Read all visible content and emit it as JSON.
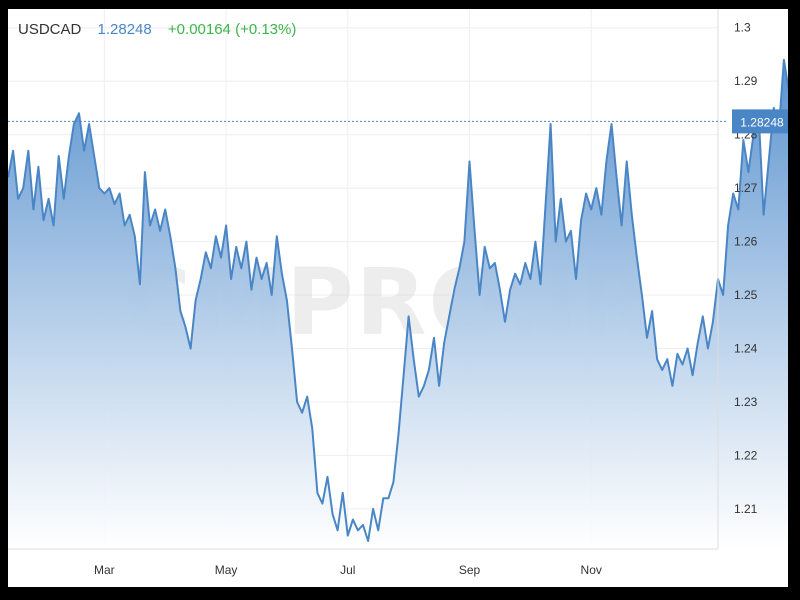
{
  "watermark": "CMPRO.IR",
  "colors": {
    "line": "#4a86c5",
    "fill_top": "#5b93cf",
    "fill_bottom": "#ffffff",
    "grid": "#eeeeee",
    "badge": "#4a86c5",
    "change_positive": "#3bb54a"
  },
  "chart_data": {
    "type": "area",
    "symbol": "USDCAD",
    "last_price": "1.28248",
    "change": "+0.00164",
    "change_pct": "(+0.13%)",
    "last_value": 1.28248,
    "ylim": [
      1.2025,
      1.3035
    ],
    "y_ticks": [
      1.21,
      1.22,
      1.23,
      1.24,
      1.25,
      1.26,
      1.27,
      1.28,
      1.29,
      1.3
    ],
    "y_tick_labels": [
      "1.21",
      "1.22",
      "1.23",
      "1.24",
      "1.25",
      "1.26",
      "1.27",
      "1.28",
      "1.29",
      "1.3"
    ],
    "x_tick_labels": [
      "Mar",
      "May",
      "Jul",
      "Sep",
      "Nov"
    ],
    "x_tick_positions": [
      19,
      43,
      67,
      91,
      115
    ],
    "x_range": [
      0,
      140
    ],
    "grid": true,
    "series": [
      {
        "values": [
          1.272,
          1.277,
          1.268,
          1.27,
          1.277,
          1.266,
          1.274,
          1.264,
          1.268,
          1.263,
          1.276,
          1.268,
          1.276,
          1.282,
          1.284,
          1.277,
          1.282,
          1.276,
          1.27,
          1.269,
          1.27,
          1.267,
          1.269,
          1.263,
          1.265,
          1.261,
          1.252,
          1.273,
          1.263,
          1.266,
          1.262,
          1.266,
          1.261,
          1.255,
          1.247,
          1.244,
          1.24,
          1.249,
          1.253,
          1.258,
          1.255,
          1.261,
          1.257,
          1.263,
          1.253,
          1.259,
          1.255,
          1.26,
          1.251,
          1.257,
          1.253,
          1.256,
          1.25,
          1.261,
          1.254,
          1.249,
          1.24,
          1.23,
          1.228,
          1.231,
          1.225,
          1.213,
          1.211,
          1.216,
          1.209,
          1.206,
          1.213,
          1.205,
          1.208,
          1.206,
          1.207,
          1.204,
          1.21,
          1.206,
          1.212,
          1.212,
          1.215,
          1.224,
          1.235,
          1.246,
          1.238,
          1.231,
          1.233,
          1.236,
          1.242,
          1.233,
          1.241,
          1.246,
          1.251,
          1.255,
          1.26,
          1.275,
          1.262,
          1.25,
          1.259,
          1.255,
          1.256,
          1.251,
          1.245,
          1.251,
          1.254,
          1.252,
          1.256,
          1.253,
          1.26,
          1.252,
          1.267,
          1.282,
          1.26,
          1.268,
          1.26,
          1.262,
          1.253,
          1.264,
          1.269,
          1.266,
          1.27,
          1.265,
          1.275,
          1.282,
          1.272,
          1.263,
          1.275,
          1.265,
          1.257,
          1.25,
          1.242,
          1.247,
          1.238,
          1.236,
          1.238,
          1.233,
          1.239,
          1.237,
          1.24,
          1.235,
          1.241,
          1.246,
          1.24,
          1.245,
          1.253,
          1.25,
          1.263,
          1.269,
          1.266,
          1.279,
          1.273,
          1.28,
          1.284,
          1.265,
          1.275,
          1.285,
          1.281,
          1.294,
          1.288,
          1.28,
          1.282
        ]
      }
    ]
  }
}
